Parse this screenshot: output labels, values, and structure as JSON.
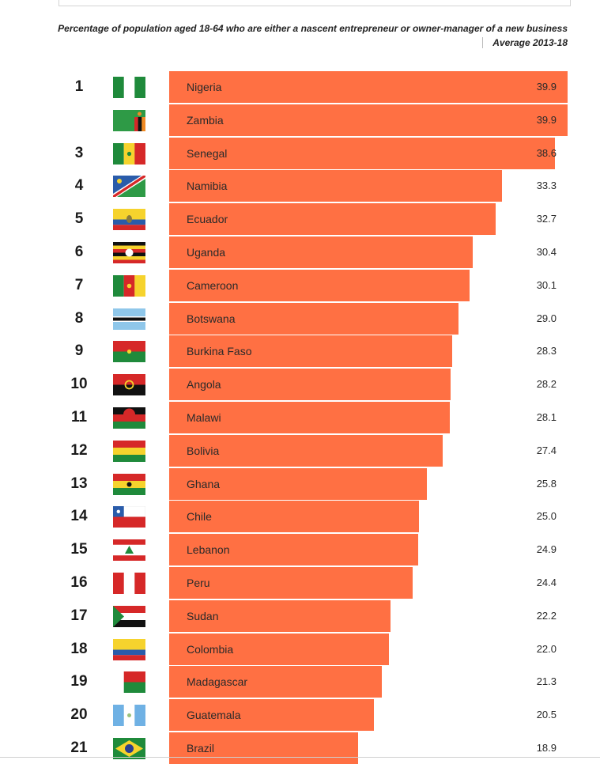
{
  "chart_data": {
    "type": "bar",
    "orientation": "horizontal",
    "title": "Percentage of population aged 18-64 who are either a nascent entrepreneur or owner-manager of a new business",
    "subtitle": "Average 2013-18",
    "xlim": [
      0,
      39.9
    ],
    "bar_color": "#ff7043",
    "rows": [
      {
        "rank": "1",
        "country": "Nigeria",
        "value": 39.9,
        "label": "39.9",
        "flag": "nigeria-flag-icon"
      },
      {
        "rank": "",
        "country": "Zambia",
        "value": 39.9,
        "label": "39.9",
        "flag": "zambia-flag-icon"
      },
      {
        "rank": "3",
        "country": "Senegal",
        "value": 38.6,
        "label": "38.6",
        "flag": "senegal-flag-icon"
      },
      {
        "rank": "4",
        "country": "Namibia",
        "value": 33.3,
        "label": "33.3",
        "flag": "namibia-flag-icon"
      },
      {
        "rank": "5",
        "country": "Ecuador",
        "value": 32.7,
        "label": "32.7",
        "flag": "ecuador-flag-icon"
      },
      {
        "rank": "6",
        "country": "Uganda",
        "value": 30.4,
        "label": "30.4",
        "flag": "uganda-flag-icon"
      },
      {
        "rank": "7",
        "country": "Cameroon",
        "value": 30.1,
        "label": "30.1",
        "flag": "cameroon-flag-icon"
      },
      {
        "rank": "8",
        "country": "Botswana",
        "value": 29.0,
        "label": "29.0",
        "flag": "botswana-flag-icon"
      },
      {
        "rank": "9",
        "country": "Burkina Faso",
        "value": 28.3,
        "label": "28.3",
        "flag": "burkina-faso-flag-icon"
      },
      {
        "rank": "10",
        "country": "Angola",
        "value": 28.2,
        "label": "28.2",
        "flag": "angola-flag-icon"
      },
      {
        "rank": "11",
        "country": "Malawi",
        "value": 28.1,
        "label": "28.1",
        "flag": "malawi-flag-icon"
      },
      {
        "rank": "12",
        "country": "Bolivia",
        "value": 27.4,
        "label": "27.4",
        "flag": "bolivia-flag-icon"
      },
      {
        "rank": "13",
        "country": "Ghana",
        "value": 25.8,
        "label": "25.8",
        "flag": "ghana-flag-icon"
      },
      {
        "rank": "14",
        "country": "Chile",
        "value": 25.0,
        "label": "25.0",
        "flag": "chile-flag-icon"
      },
      {
        "rank": "15",
        "country": "Lebanon",
        "value": 24.9,
        "label": "24.9",
        "flag": "lebanon-flag-icon"
      },
      {
        "rank": "16",
        "country": "Peru",
        "value": 24.4,
        "label": "24.4",
        "flag": "peru-flag-icon"
      },
      {
        "rank": "17",
        "country": "Sudan",
        "value": 22.2,
        "label": "22.2",
        "flag": "sudan-flag-icon"
      },
      {
        "rank": "18",
        "country": "Colombia",
        "value": 22.0,
        "label": "22.0",
        "flag": "colombia-flag-icon"
      },
      {
        "rank": "19",
        "country": "Madagascar",
        "value": 21.3,
        "label": "21.3",
        "flag": "madagascar-flag-icon"
      },
      {
        "rank": "20",
        "country": "Guatemala",
        "value": 20.5,
        "label": "20.5",
        "flag": "guatemala-flag-icon"
      },
      {
        "rank": "21",
        "country": "Brazil",
        "value": 18.9,
        "label": "18.9",
        "flag": "brazil-flag-icon"
      }
    ]
  }
}
